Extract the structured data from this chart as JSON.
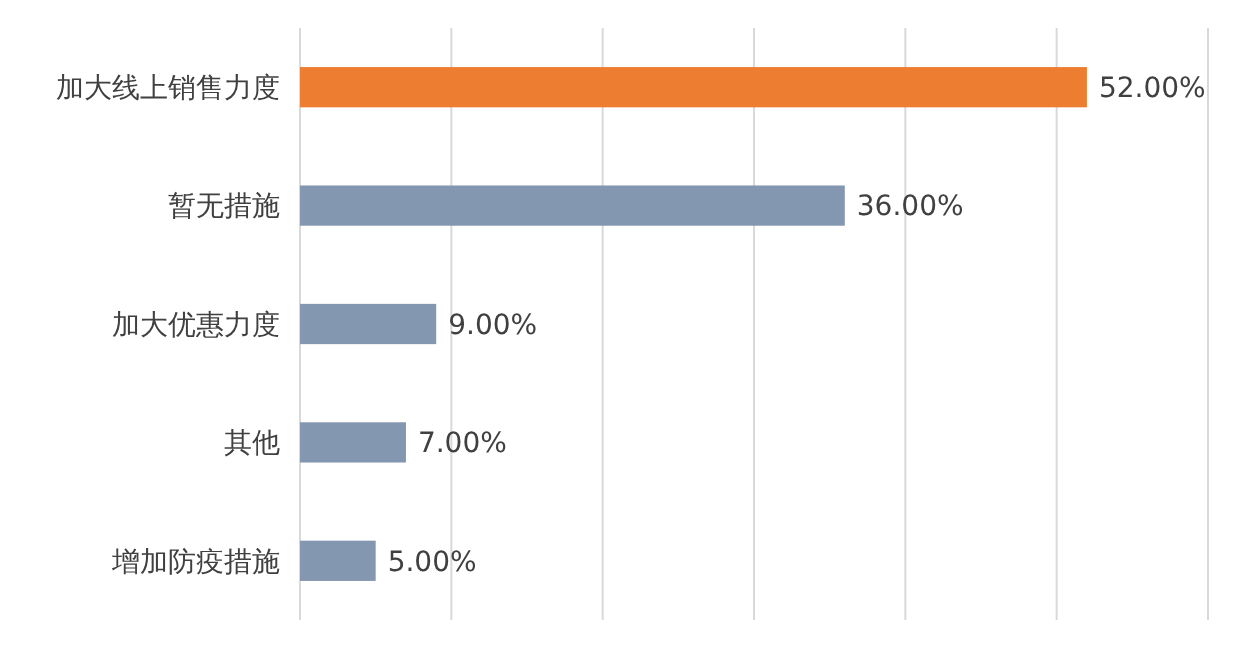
{
  "chart_data": {
    "type": "bar",
    "orientation": "horizontal",
    "categories": [
      "加大线上销售力度",
      "暂无措施",
      "加大优惠力度",
      "其他",
      "增加防疫措施"
    ],
    "values": [
      52,
      36,
      9,
      7,
      5
    ],
    "colors": [
      "#ed7d31",
      "#8497b0",
      "#8497b0",
      "#8497b0",
      "#8497b0"
    ],
    "value_labels": [
      "52.00%",
      "36.00%",
      "9.00%",
      "7.00%",
      "5.00%"
    ],
    "xlim": [
      0,
      60
    ],
    "xticks": [
      {
        "value": 0,
        "label": null
      },
      {
        "value": 10,
        "label": null
      },
      {
        "value": 20,
        "label": null
      },
      {
        "value": 30,
        "label": null
      },
      {
        "value": 40,
        "label": null
      },
      {
        "value": 50,
        "label": null
      },
      {
        "value": 60,
        "label": null
      }
    ],
    "grid": "x"
  }
}
